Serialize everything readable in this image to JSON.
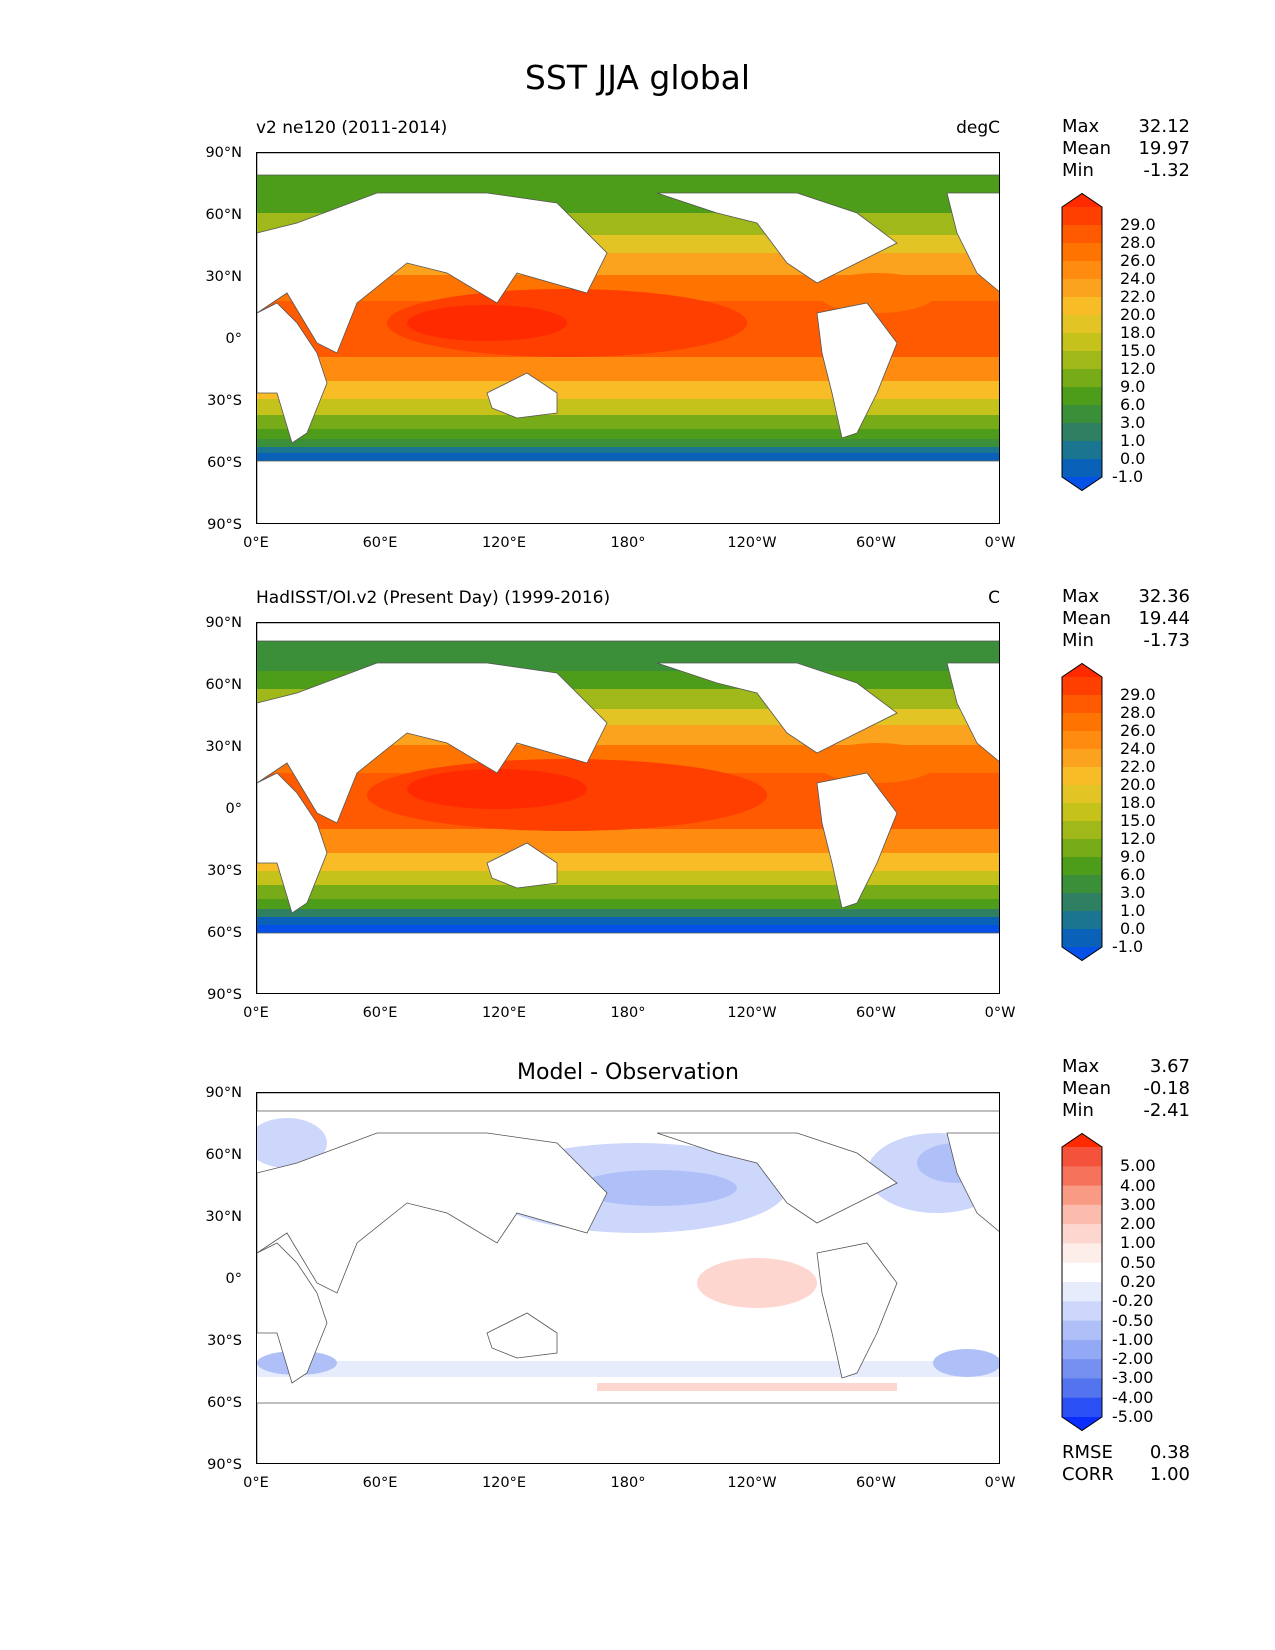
{
  "figure_title": "SST JJA global",
  "axes": {
    "lat_ticks": [
      "90°N",
      "60°N",
      "30°N",
      "0°",
      "30°S",
      "60°S",
      "90°S"
    ],
    "lon_ticks": [
      "0°E",
      "60°E",
      "120°E",
      "180°",
      "120°W",
      "60°W",
      "0°W"
    ]
  },
  "panels": [
    {
      "title_left": "v2 ne120 (2011-2014)",
      "title_right": "degC",
      "title_center": "",
      "stats": {
        "max_label": "Max",
        "max": "32.12",
        "mean_label": "Mean",
        "mean": "19.97",
        "min_label": "Min",
        "min": "-1.32"
      },
      "colorbar": {
        "labels": [
          "29.0",
          "28.0",
          "26.0",
          "24.0",
          "22.0",
          "20.0",
          "18.0",
          "15.0",
          "12.0",
          "9.0",
          "6.0",
          "3.0",
          "1.0",
          "0.0",
          "-1.0"
        ],
        "colors": [
          "#ff2a00",
          "#ff3f00",
          "#ff5a00",
          "#ff7400",
          "#ff8c10",
          "#fba21f",
          "#f7bc26",
          "#e2c524",
          "#c6c21c",
          "#a0b819",
          "#78ab18",
          "#4e9d1a",
          "#3a8f38",
          "#2f8063",
          "#1a7590",
          "#0a62b8",
          "#0550e6"
        ]
      }
    },
    {
      "title_left": "HadISST/OI.v2 (Present Day) (1999-2016)",
      "title_right": "C",
      "title_center": "",
      "stats": {
        "max_label": "Max",
        "max": "32.36",
        "mean_label": "Mean",
        "mean": "19.44",
        "min_label": "Min",
        "min": "-1.73"
      },
      "colorbar": {
        "labels": [
          "29.0",
          "28.0",
          "26.0",
          "24.0",
          "22.0",
          "20.0",
          "18.0",
          "15.0",
          "12.0",
          "9.0",
          "6.0",
          "3.0",
          "1.0",
          "0.0",
          "-1.0"
        ],
        "colors": [
          "#ff2a00",
          "#ff3f00",
          "#ff5a00",
          "#ff7400",
          "#ff8c10",
          "#fba21f",
          "#f7bc26",
          "#e2c524",
          "#c6c21c",
          "#a0b819",
          "#78ab18",
          "#4e9d1a",
          "#3a8f38",
          "#2f8063",
          "#1a7590",
          "#0a62b8",
          "#0550e6"
        ]
      }
    },
    {
      "title_left": "",
      "title_right": "",
      "title_center": "Model - Observation",
      "stats": {
        "max_label": "Max",
        "max": "3.67",
        "mean_label": "Mean",
        "mean": "-0.18",
        "min_label": "Min",
        "min": "-2.41"
      },
      "colorbar": {
        "labels": [
          "5.00",
          "4.00",
          "3.00",
          "2.00",
          "1.00",
          "0.50",
          "0.20",
          "-0.20",
          "-0.50",
          "-1.00",
          "-2.00",
          "-3.00",
          "-4.00",
          "-5.00"
        ],
        "colors": [
          "#ff2a00",
          "#f5523c",
          "#f7725a",
          "#f99a85",
          "#fbbcae",
          "#fdd7cf",
          "#feeeea",
          "#ffffff",
          "#e7ecfd",
          "#ccd7fb",
          "#afc0f8",
          "#93a9f5",
          "#7690f2",
          "#5474ef",
          "#2a4ff4",
          "#0a2cff"
        ]
      },
      "rmse": {
        "rmse_label": "RMSE",
        "rmse": "0.38",
        "corr_label": "CORR",
        "corr": "1.00"
      }
    }
  ]
}
